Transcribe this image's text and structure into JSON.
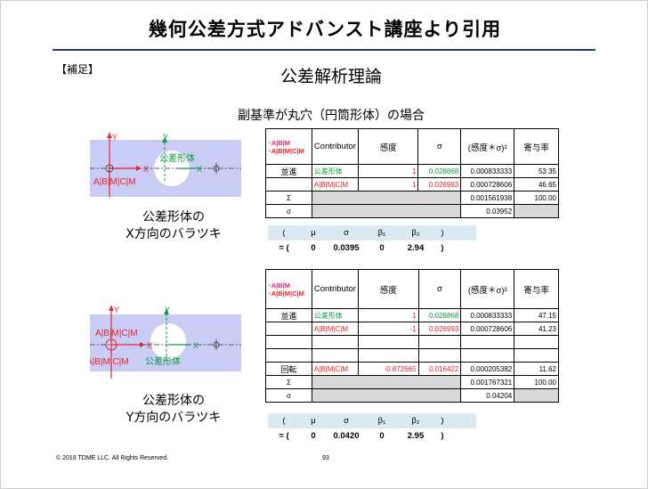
{
  "header": {
    "title": "幾何公差方式アドバンスト講座より引用",
    "supplement": "【補足】",
    "heading": "公差解析理論",
    "subheading": "副基準が丸穴（円筒形体）の場合"
  },
  "diagram1": {
    "feature_label": "公差形体",
    "frame_label": "A|B|M|C|M",
    "axis_y": "Y",
    "axis_x": "X",
    "caption_line1": "公差形体の",
    "caption_line2": "X方向のバラツキ"
  },
  "diagram2": {
    "feature_label": "公差形体",
    "frame_label_1": "A|B|M|C|M",
    "frame_label_2": "A|B|M|C|M",
    "axis_y": "Y",
    "axis_x": "X",
    "caption_line1": "公差形体の",
    "caption_line2": "Y方向のバラツキ"
  },
  "table1": {
    "feature_line1": "･A|B|M",
    "feature_line2": "･A|B|M|C|M",
    "headers": [
      "Contributor",
      "感度",
      "σ",
      "(感度＊σ)²",
      "寄与率"
    ],
    "rows": [
      {
        "label": "並進",
        "contributor": "公差形体",
        "sens": "1",
        "sigma": "0.028868",
        "prod": "0.000833333",
        "contrib": "53.35"
      },
      {
        "label": "",
        "contributor": "A|B|M|C|M",
        "sens": "1",
        "sigma": "0.026993",
        "prod": "0.000728606",
        "contrib": "46.65"
      }
    ],
    "sum_label": "Σ",
    "sum_prod": "0.001561938",
    "sum_contrib": "100.00",
    "sigma_label": "σ",
    "sigma_value": "0.03952"
  },
  "table2": {
    "feature_line1": "･A|B|M",
    "feature_line2": "･A|B|M|C|M",
    "headers": [
      "Contributor",
      "感度",
      "σ",
      "(感度＊σ)²",
      "寄与率"
    ],
    "rows": [
      {
        "label": "並進",
        "contributor": "公差形体",
        "sens": "1",
        "sigma": "0.028868",
        "prod": "0.000833333",
        "contrib": "47.15"
      },
      {
        "label": "",
        "contributor": "A|B|M|C|M",
        "sens": "-1",
        "sigma": "0.026993",
        "prod": "0.000728606",
        "contrib": "41.23"
      },
      {
        "label": "",
        "contributor": "",
        "sens": "",
        "sigma": "",
        "prod": "",
        "contrib": ""
      },
      {
        "label": "",
        "contributor": "",
        "sens": "",
        "sigma": "",
        "prod": "",
        "contrib": ""
      },
      {
        "label": "回転",
        "contributor": "A|B|M|C|M",
        "sens": "-0.872665",
        "sigma": "0.016422",
        "prod": "0.000205382",
        "contrib": "11.62"
      }
    ],
    "sum_label": "Σ",
    "sum_prod": "0.001767321",
    "sum_contrib": "100.00",
    "sigma_label": "σ",
    "sigma_value": "0.04204"
  },
  "result1": {
    "top": [
      "(",
      "μ",
      "σ",
      "β₁",
      "β₂",
      ")"
    ],
    "bottom": [
      "= (",
      "0",
      "0.0395",
      "0",
      "2.94",
      ")"
    ]
  },
  "result2": {
    "top": [
      "(",
      "μ",
      "σ",
      "β₁",
      "β₂",
      ")"
    ],
    "bottom": [
      "= (",
      "0",
      "0.0420",
      "0",
      "2.95",
      ")"
    ]
  },
  "footer": {
    "copyright": "© 2019 TDME LLC. All Rights Reserved.",
    "page": "93"
  },
  "colors": {
    "title_rule": "#1f3b7a",
    "diagram_bg": "#c9cdf5",
    "green": "#0a9a3c",
    "red": "#e8232a",
    "magenta": "#e0217a",
    "grey_cell": "#d9d9d9",
    "result_band": "#dbe9f1"
  }
}
